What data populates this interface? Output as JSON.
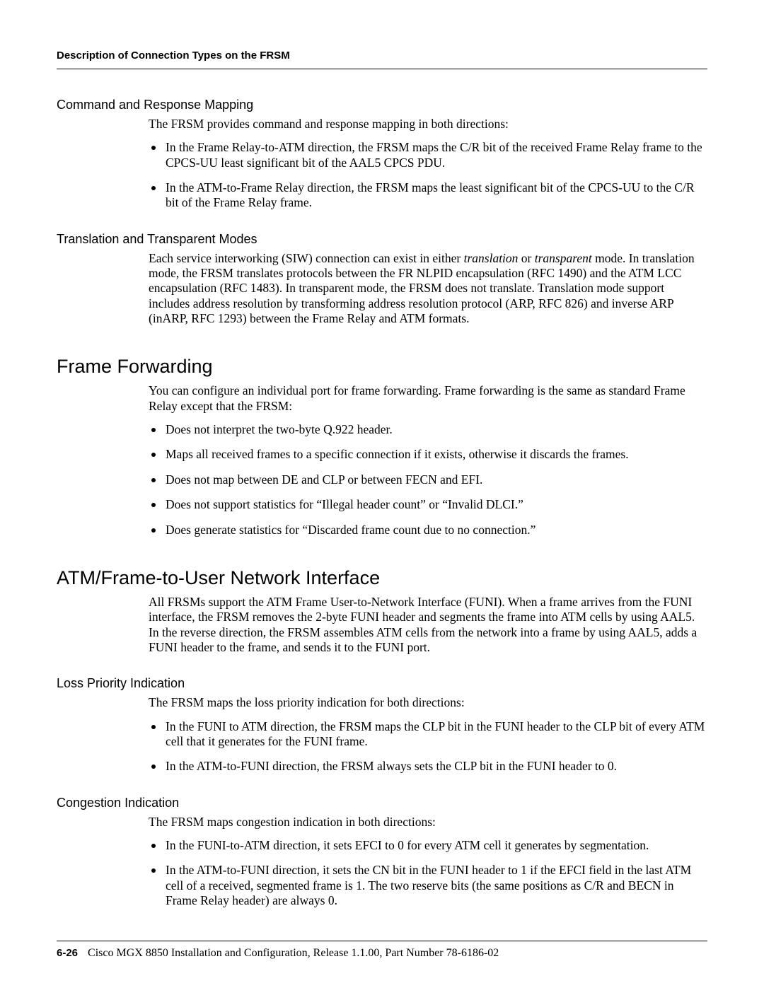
{
  "runhead": "Description of Connection Types on the FRSM",
  "s1": {
    "title": "Command and Response Mapping",
    "intro": "The FRSM provides command and response mapping in both directions:",
    "b1": "In the Frame Relay-to-ATM direction, the FRSM maps the C/R bit of the received Frame Relay frame to the CPCS-UU least significant bit of the AAL5 CPCS PDU.",
    "b2": "In the ATM-to-Frame Relay direction, the FRSM maps the least significant bit of the CPCS-UU to the C/R bit of the Frame Relay frame."
  },
  "s2": {
    "title": "Translation and Transparent Modes",
    "p_a": "Each service interworking (SIW) connection can exist in either ",
    "p_i1": "translation",
    "p_b": " or ",
    "p_i2": "transparent",
    "p_c": " mode. In translation mode, the FRSM translates protocols between the FR NLPID encapsulation (RFC 1490) and the ATM LCC encapsulation (RFC 1483). In transparent mode, the FRSM does not translate. Translation mode support includes address resolution by transforming address resolution protocol (ARP, RFC 826) and inverse ARP (inARP, RFC 1293) between the Frame Relay and ATM formats."
  },
  "s3": {
    "title": "Frame Forwarding",
    "intro": "You can configure an individual port for frame forwarding. Frame forwarding is the same as standard Frame Relay except that the FRSM:",
    "b1": "Does not interpret the two-byte Q.922 header.",
    "b2": "Maps all received frames to a specific connection if it exists, otherwise it discards the frames.",
    "b3": "Does not map between DE and CLP or between FECN and EFI.",
    "b4": "Does not support statistics for “Illegal header count” or “Invalid DLCI.”",
    "b5": "Does generate statistics for “Discarded frame count due to no connection.”"
  },
  "s4": {
    "title": "ATM/Frame-to-User Network Interface",
    "intro": "All FRSMs support the ATM Frame User-to-Network Interface (FUNI). When a frame arrives from the FUNI interface, the FRSM removes the 2-byte FUNI header and segments the frame into ATM cells by using AAL5. In the reverse direction, the FRSM assembles ATM cells from the network into a frame by using AAL5, adds a FUNI header to the frame, and sends it to the FUNI port."
  },
  "s5": {
    "title": "Loss Priority Indication",
    "intro": "The FRSM maps the loss priority indication for both directions:",
    "b1": "In the FUNI to ATM direction, the FRSM maps the CLP bit in the FUNI header to the CLP bit of every ATM cell that it generates for the FUNI frame.",
    "b2": "In the ATM-to-FUNI direction, the FRSM always sets the CLP bit in the FUNI header to 0."
  },
  "s6": {
    "title": "Congestion Indication",
    "intro": "The FRSM maps congestion indication in both directions:",
    "b1": "In the FUNI-to-ATM direction, it sets EFCI to 0 for every ATM cell it generates by segmentation.",
    "b2": "In the ATM-to-FUNI direction, it sets the CN bit in the FUNI header to 1 if the EFCI field in the last ATM cell of a received, segmented frame is 1. The two reserve bits (the same positions as C/R and BECN in Frame Relay header) are always 0."
  },
  "footer": {
    "pagenum": "6-26",
    "text": "Cisco MGX 8850 Installation and Configuration, Release 1.1.00, Part Number 78-6186-02"
  }
}
